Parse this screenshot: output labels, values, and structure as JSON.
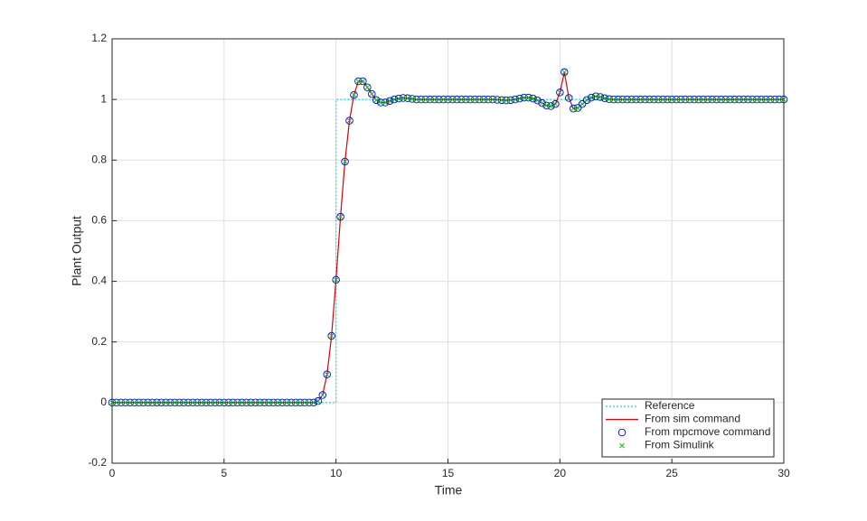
{
  "chart_data": {
    "type": "line",
    "xlabel": "Time",
    "ylabel": "Plant Output",
    "xlim": [
      0,
      30
    ],
    "ylim": [
      -0.2,
      1.2
    ],
    "xticks": [
      0,
      5,
      10,
      15,
      20,
      25,
      30
    ],
    "yticks": [
      -0.2,
      0,
      0.2,
      0.4,
      0.6,
      0.8,
      1,
      1.2
    ],
    "grid": true,
    "legend": "lower right",
    "x": [
      0,
      0.2,
      0.4,
      0.6,
      0.8,
      1,
      1.2,
      1.4,
      1.6,
      1.8,
      2,
      2.2,
      2.4,
      2.6,
      2.8,
      3,
      3.2,
      3.4,
      3.6,
      3.8,
      4,
      4.2,
      4.4,
      4.6,
      4.8,
      5,
      5.2,
      5.4,
      5.6,
      5.8,
      6,
      6.2,
      6.4,
      6.6,
      6.8,
      7,
      7.2,
      7.4,
      7.6,
      7.8,
      8,
      8.2,
      8.4,
      8.6,
      8.8,
      9,
      9.2,
      9.4,
      9.6,
      9.8,
      10,
      10.2,
      10.4,
      10.6,
      10.8,
      11,
      11.2,
      11.4,
      11.6,
      11.8,
      12,
      12.2,
      12.4,
      12.6,
      12.8,
      13,
      13.2,
      13.4,
      13.6,
      13.8,
      14,
      14.2,
      14.4,
      14.6,
      14.8,
      15,
      15.2,
      15.4,
      15.6,
      15.8,
      16,
      16.2,
      16.4,
      16.6,
      16.8,
      17,
      17.2,
      17.4,
      17.6,
      17.8,
      18,
      18.2,
      18.4,
      18.6,
      18.8,
      19,
      19.2,
      19.4,
      19.6,
      19.8,
      20,
      20.2,
      20.4,
      20.6,
      20.8,
      21,
      21.2,
      21.4,
      21.6,
      21.8,
      22,
      22.2,
      22.4,
      22.6,
      22.8,
      23,
      23.2,
      23.4,
      23.6,
      23.8,
      24,
      24.2,
      24.4,
      24.6,
      24.8,
      25,
      25.2,
      25.4,
      25.6,
      25.8,
      26,
      26.2,
      26.4,
      26.6,
      26.8,
      27,
      27.2,
      27.4,
      27.6,
      27.8,
      28,
      28.2,
      28.4,
      28.6,
      28.8,
      29,
      29.2,
      29.4,
      29.6,
      29.8,
      30
    ],
    "series": [
      {
        "name": "Reference",
        "color": "#00e5e5",
        "style": "dotted",
        "x": [
          0,
          10,
          10,
          30
        ],
        "values": [
          0,
          0,
          1,
          1
        ]
      },
      {
        "name": "From sim command",
        "color": "#e00000",
        "style": "solid",
        "values": [
          0,
          0,
          0,
          0,
          0,
          0,
          0,
          0,
          0,
          0,
          0,
          0,
          0,
          0,
          0,
          0,
          0,
          0,
          0,
          0,
          0,
          0,
          0,
          0,
          0,
          0,
          0,
          0,
          0,
          0,
          0,
          0,
          0,
          0,
          0,
          0,
          0,
          0,
          0,
          0,
          0,
          0,
          0,
          0,
          0,
          0,
          0.005,
          0.025,
          0.093,
          0.22,
          0.405,
          0.613,
          0.795,
          0.93,
          1.015,
          1.06,
          1.06,
          1.04,
          1.018,
          0.998,
          0.99,
          0.99,
          0.995,
          1,
          1.003,
          1.005,
          1.004,
          1.002,
          1,
          1,
          1,
          1,
          1,
          1,
          1,
          1,
          1,
          1,
          1,
          1,
          1,
          1,
          1,
          1,
          1,
          1,
          0.999,
          0.998,
          0.997,
          0.998,
          1,
          1.003,
          1.006,
          1.006,
          1.003,
          0.997,
          0.988,
          0.98,
          0.978,
          0.985,
          1.023,
          1.09,
          1.005,
          0.97,
          0.972,
          0.985,
          0.998,
          1.006,
          1.01,
          1.008,
          1.004,
          1.001,
          1,
          1,
          1,
          1,
          1,
          1,
          1,
          1,
          1,
          1,
          1,
          1,
          1,
          1,
          1,
          1,
          1,
          1,
          1,
          1,
          1,
          1,
          1,
          1,
          1,
          1,
          1,
          1,
          1,
          1,
          1,
          1,
          1,
          1,
          1,
          1,
          1,
          1,
          1
        ]
      },
      {
        "name": "From mpcmove command",
        "color": "#0000ff",
        "style": "circle",
        "values": [
          0,
          0,
          0,
          0,
          0,
          0,
          0,
          0,
          0,
          0,
          0,
          0,
          0,
          0,
          0,
          0,
          0,
          0,
          0,
          0,
          0,
          0,
          0,
          0,
          0,
          0,
          0,
          0,
          0,
          0,
          0,
          0,
          0,
          0,
          0,
          0,
          0,
          0,
          0,
          0,
          0,
          0,
          0,
          0,
          0,
          0,
          0.005,
          0.025,
          0.093,
          0.22,
          0.405,
          0.613,
          0.795,
          0.93,
          1.015,
          1.06,
          1.06,
          1.04,
          1.018,
          0.998,
          0.99,
          0.99,
          0.995,
          1,
          1.003,
          1.005,
          1.004,
          1.002,
          1,
          1,
          1,
          1,
          1,
          1,
          1,
          1,
          1,
          1,
          1,
          1,
          1,
          1,
          1,
          1,
          1,
          1,
          0.999,
          0.998,
          0.997,
          0.998,
          1,
          1.003,
          1.006,
          1.006,
          1.003,
          0.997,
          0.988,
          0.98,
          0.978,
          0.985,
          1.023,
          1.09,
          1.005,
          0.97,
          0.972,
          0.985,
          0.998,
          1.006,
          1.01,
          1.008,
          1.004,
          1.001,
          1,
          1,
          1,
          1,
          1,
          1,
          1,
          1,
          1,
          1,
          1,
          1,
          1,
          1,
          1,
          1,
          1,
          1,
          1,
          1,
          1,
          1,
          1,
          1,
          1,
          1,
          1,
          1,
          1,
          1,
          1,
          1,
          1,
          1,
          1,
          1,
          1,
          1,
          1
        ]
      },
      {
        "name": "From Simulink",
        "color": "#00c800",
        "style": "cross",
        "values": [
          0,
          0,
          0,
          0,
          0,
          0,
          0,
          0,
          0,
          0,
          0,
          0,
          0,
          0,
          0,
          0,
          0,
          0,
          0,
          0,
          0,
          0,
          0,
          0,
          0,
          0,
          0,
          0,
          0,
          0,
          0,
          0,
          0,
          0,
          0,
          0,
          0,
          0,
          0,
          0,
          0,
          0,
          0,
          0,
          0,
          0,
          0.005,
          0.025,
          0.093,
          0.22,
          0.405,
          0.613,
          0.795,
          0.93,
          1.015,
          1.06,
          1.06,
          1.04,
          1.018,
          0.998,
          0.99,
          0.99,
          0.995,
          1,
          1.003,
          1.005,
          1.004,
          1.002,
          1,
          1,
          1,
          1,
          1,
          1,
          1,
          1,
          1,
          1,
          1,
          1,
          1,
          1,
          1,
          1,
          1,
          1,
          0.999,
          0.998,
          0.997,
          0.998,
          1,
          1.003,
          1.006,
          1.006,
          1.003,
          0.997,
          0.988,
          0.98,
          0.978,
          0.985,
          1.023,
          1.09,
          1.005,
          0.97,
          0.972,
          0.985,
          0.998,
          1.006,
          1.01,
          1.008,
          1.004,
          1.001,
          1,
          1,
          1,
          1,
          1,
          1,
          1,
          1,
          1,
          1,
          1,
          1,
          1,
          1,
          1,
          1,
          1,
          1,
          1,
          1,
          1,
          1,
          1,
          1,
          1,
          1,
          1,
          1,
          1,
          1,
          1,
          1,
          1,
          1,
          1,
          1,
          1,
          1,
          1
        ]
      }
    ]
  }
}
